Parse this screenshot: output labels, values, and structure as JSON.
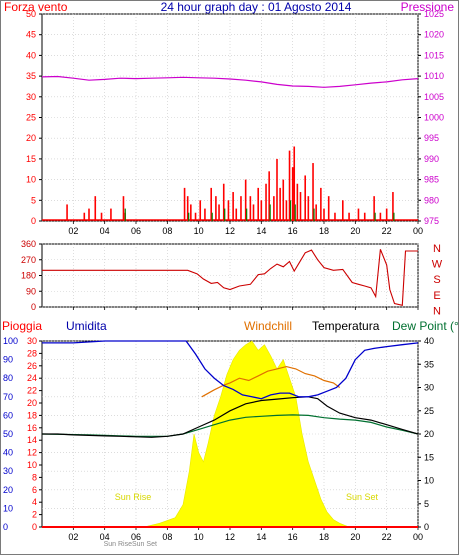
{
  "header": {
    "left_label": "Forza vento",
    "title": "24 hour graph day : 01 Agosto 2014",
    "right_label": "Pressione"
  },
  "top_panel": {
    "left_ticks": [
      "0",
      "5",
      "10",
      "15",
      "20",
      "25",
      "30",
      "35",
      "40",
      "45",
      "50"
    ],
    "right_ticks": [
      "975",
      "980",
      "985",
      "990",
      "995",
      "1000",
      "1005",
      "1010",
      "1015",
      "1020",
      "1025"
    ]
  },
  "dir_panel": {
    "left_ticks": [
      "0",
      "90",
      "180",
      "270",
      "360"
    ],
    "compass": [
      "N",
      "W",
      "S",
      "E",
      "N"
    ]
  },
  "bottom_panel": {
    "labels": {
      "rain": "Pioggia",
      "humidity": "Umidita",
      "windchill": "Windchill",
      "temperature": "Temperatura",
      "dewpoint": "Dew Point (°C"
    },
    "hum_ticks": [
      "0",
      "10",
      "20",
      "30",
      "40",
      "50",
      "60",
      "70",
      "80",
      "90",
      "100"
    ],
    "rain_ticks": [
      "0",
      "2",
      "4",
      "6",
      "8",
      "10",
      "12",
      "14",
      "16",
      "18",
      "20",
      "22",
      "24",
      "26",
      "28",
      "30"
    ],
    "temp_ticks": [
      "0",
      "5",
      "10",
      "15",
      "20",
      "25",
      "30",
      "35",
      "40"
    ],
    "sunrise_label": "Sun Rise",
    "sunset_label": "Sun Set",
    "sunrise_tick_label": "Sun Rise",
    "sunset_tick_label": "Sun Set"
  },
  "x_ticks": [
    "02",
    "04",
    "06",
    "08",
    "10",
    "12",
    "14",
    "16",
    "18",
    "20",
    "22",
    "00"
  ],
  "colors": {
    "wind": "#ff0000",
    "gust": "#008000",
    "pressure": "#cc00cc",
    "direction": "#cc0000",
    "humidity": "#0000cc",
    "temperature": "#000000",
    "windchill": "#e07000",
    "dewpoint": "#007030",
    "solar": "#ffff00",
    "rain": "#ff0000",
    "title": "#0000aa"
  },
  "chart_data": [
    {
      "type": "line",
      "name": "Forza vento / Pressione",
      "x_unit": "hour",
      "xlim": [
        0,
        24
      ],
      "wind_ylim": [
        0,
        50
      ],
      "pressure_ylim": [
        975,
        1025
      ],
      "wind_bars": [
        [
          1.6,
          4
        ],
        [
          2.7,
          2
        ],
        [
          3.0,
          3
        ],
        [
          3.4,
          6
        ],
        [
          3.8,
          2
        ],
        [
          4.4,
          3
        ],
        [
          5.2,
          6
        ],
        [
          5.3,
          2
        ],
        [
          9.1,
          8
        ],
        [
          9.3,
          6
        ],
        [
          9.5,
          4
        ],
        [
          9.8,
          2
        ],
        [
          10.1,
          5
        ],
        [
          10.4,
          3
        ],
        [
          10.8,
          8
        ],
        [
          11.1,
          6
        ],
        [
          11.3,
          4
        ],
        [
          11.6,
          9
        ],
        [
          11.9,
          5
        ],
        [
          12.2,
          7
        ],
        [
          12.4,
          3
        ],
        [
          12.7,
          6
        ],
        [
          13.0,
          10
        ],
        [
          13.3,
          6
        ],
        [
          13.5,
          4
        ],
        [
          13.8,
          8
        ],
        [
          14.0,
          5
        ],
        [
          14.3,
          9
        ],
        [
          14.5,
          12
        ],
        [
          14.8,
          6
        ],
        [
          15.0,
          15
        ],
        [
          15.2,
          8
        ],
        [
          15.4,
          10
        ],
        [
          15.6,
          5
        ],
        [
          15.8,
          17
        ],
        [
          16.0,
          13
        ],
        [
          16.1,
          18
        ],
        [
          16.3,
          9
        ],
        [
          16.5,
          7
        ],
        [
          16.8,
          11
        ],
        [
          17.0,
          6
        ],
        [
          17.3,
          14
        ],
        [
          17.5,
          4
        ],
        [
          17.8,
          8
        ],
        [
          18.0,
          3
        ],
        [
          18.3,
          6
        ],
        [
          18.7,
          2
        ],
        [
          19.2,
          5
        ],
        [
          19.6,
          2
        ],
        [
          20.2,
          3
        ],
        [
          20.6,
          2
        ],
        [
          21.2,
          6
        ],
        [
          21.6,
          2
        ],
        [
          22.0,
          3
        ],
        [
          22.4,
          7
        ]
      ],
      "gust_bars": [
        [
          5.25,
          3
        ],
        [
          9.3,
          2
        ],
        [
          10.8,
          2
        ],
        [
          11.6,
          3
        ],
        [
          13.0,
          3
        ],
        [
          14.5,
          4
        ],
        [
          15.8,
          5
        ],
        [
          16.1,
          4
        ],
        [
          17.3,
          3
        ],
        [
          21.2,
          2
        ],
        [
          22.4,
          2
        ]
      ],
      "pressure": [
        [
          0,
          1009.8
        ],
        [
          1,
          1009.9
        ],
        [
          2,
          1009.5
        ],
        [
          3,
          1009.0
        ],
        [
          4,
          1009.2
        ],
        [
          5,
          1009.5
        ],
        [
          6,
          1009.4
        ],
        [
          7,
          1009.5
        ],
        [
          8,
          1009.6
        ],
        [
          9,
          1009.7
        ],
        [
          10,
          1009.6
        ],
        [
          11,
          1009.5
        ],
        [
          12,
          1009.3
        ],
        [
          13,
          1009.0
        ],
        [
          14,
          1008.6
        ],
        [
          15,
          1008.0
        ],
        [
          16,
          1007.6
        ],
        [
          17,
          1007.5
        ],
        [
          18,
          1007.3
        ],
        [
          19,
          1007.5
        ],
        [
          20,
          1007.9
        ],
        [
          21,
          1008.3
        ],
        [
          22,
          1008.6
        ],
        [
          23,
          1009.1
        ],
        [
          24,
          1009.4
        ]
      ]
    },
    {
      "type": "line",
      "name": "Direzione vento",
      "x_unit": "hour",
      "xlim": [
        0,
        24
      ],
      "ylim": [
        0,
        360
      ],
      "direction": [
        [
          0,
          210
        ],
        [
          9.3,
          210
        ],
        [
          9.9,
          190
        ],
        [
          10.3,
          160
        ],
        [
          10.8,
          135
        ],
        [
          11.2,
          140
        ],
        [
          11.6,
          110
        ],
        [
          12.0,
          100
        ],
        [
          12.6,
          120
        ],
        [
          13.3,
          130
        ],
        [
          13.8,
          185
        ],
        [
          14.2,
          190
        ],
        [
          14.6,
          220
        ],
        [
          15.0,
          245
        ],
        [
          15.4,
          230
        ],
        [
          15.8,
          260
        ],
        [
          16.1,
          205
        ],
        [
          16.4,
          250
        ],
        [
          16.8,
          310
        ],
        [
          17.2,
          325
        ],
        [
          17.6,
          270
        ],
        [
          18.0,
          225
        ],
        [
          18.6,
          210
        ],
        [
          19.2,
          215
        ],
        [
          19.8,
          140
        ],
        [
          20.2,
          130
        ],
        [
          20.6,
          120
        ],
        [
          21.0,
          110
        ],
        [
          21.3,
          60
        ],
        [
          21.6,
          330
        ],
        [
          22.0,
          240
        ],
        [
          22.2,
          100
        ],
        [
          22.5,
          20
        ],
        [
          23.0,
          10
        ],
        [
          23.2,
          320
        ],
        [
          24,
          320
        ]
      ]
    },
    {
      "type": "line",
      "name": "Pioggia / Umidita / Temperatura",
      "x_unit": "hour",
      "xlim": [
        0,
        24
      ],
      "humidity_ylim": [
        0,
        100
      ],
      "rain_ylim": [
        0,
        30
      ],
      "temperature_ylim": [
        0,
        40
      ],
      "humidity": [
        [
          0,
          99
        ],
        [
          2,
          99
        ],
        [
          4,
          100
        ],
        [
          6,
          100
        ],
        [
          8,
          100
        ],
        [
          9.2,
          100
        ],
        [
          9.8,
          93
        ],
        [
          10.4,
          85
        ],
        [
          11.0,
          80
        ],
        [
          11.6,
          76
        ],
        [
          12.2,
          74
        ],
        [
          12.8,
          71
        ],
        [
          13.4,
          70
        ],
        [
          14.0,
          69
        ],
        [
          14.6,
          71
        ],
        [
          15.2,
          72
        ],
        [
          15.8,
          72
        ],
        [
          16.4,
          70
        ],
        [
          17.0,
          70
        ],
        [
          17.6,
          71
        ],
        [
          18.2,
          73
        ],
        [
          18.8,
          75
        ],
        [
          19.4,
          80
        ],
        [
          20.0,
          90
        ],
        [
          20.6,
          95
        ],
        [
          21.2,
          96
        ],
        [
          22.0,
          97
        ],
        [
          23.0,
          98
        ],
        [
          24,
          99
        ]
      ],
      "temperature": [
        [
          0,
          20.0
        ],
        [
          1,
          20.0
        ],
        [
          2,
          19.8
        ],
        [
          3,
          19.7
        ],
        [
          4,
          19.6
        ],
        [
          5,
          19.5
        ],
        [
          6,
          19.4
        ],
        [
          7,
          19.3
        ],
        [
          8,
          19.5
        ],
        [
          9,
          20.0
        ],
        [
          10,
          21.5
        ],
        [
          11,
          23.0
        ],
        [
          12,
          25.0
        ],
        [
          13,
          26.5
        ],
        [
          14,
          27.2
        ],
        [
          15,
          27.5
        ],
        [
          16,
          27.8
        ],
        [
          17,
          28.0
        ],
        [
          17.6,
          27.6
        ],
        [
          18.2,
          26.0
        ],
        [
          19,
          24.5
        ],
        [
          20,
          23.5
        ],
        [
          21,
          23.0
        ],
        [
          22,
          22.0
        ],
        [
          23,
          21.0
        ],
        [
          24,
          20.0
        ]
      ],
      "windchill": [
        [
          10.2,
          28.0
        ],
        [
          11.0,
          29.5
        ],
        [
          11.6,
          30.5
        ],
        [
          12.0,
          31.0
        ],
        [
          12.6,
          32.0
        ],
        [
          13.2,
          31.5
        ],
        [
          13.8,
          32.5
        ],
        [
          14.4,
          33.5
        ],
        [
          15.0,
          34.0
        ],
        [
          15.6,
          34.5
        ],
        [
          16.2,
          34.0
        ],
        [
          16.8,
          33.0
        ],
        [
          17.4,
          32.5
        ],
        [
          18.0,
          31.5
        ],
        [
          18.6,
          31.0
        ],
        [
          19.0,
          30.0
        ]
      ],
      "dewpoint": [
        [
          0,
          20.0
        ],
        [
          3,
          19.8
        ],
        [
          6,
          19.5
        ],
        [
          8,
          19.5
        ],
        [
          9,
          20.0
        ],
        [
          10,
          21.0
        ],
        [
          11,
          22.0
        ],
        [
          12,
          23.0
        ],
        [
          13,
          23.6
        ],
        [
          14,
          23.8
        ],
        [
          15,
          24.0
        ],
        [
          16,
          24.1
        ],
        [
          17,
          24.0
        ],
        [
          18,
          23.5
        ],
        [
          19,
          23.2
        ],
        [
          20,
          23.0
        ],
        [
          21,
          22.5
        ],
        [
          22,
          21.5
        ],
        [
          23,
          20.8
        ],
        [
          24,
          20.0
        ]
      ],
      "solar_percent": [
        [
          6.5,
          0
        ],
        [
          7.5,
          2
        ],
        [
          8.5,
          5
        ],
        [
          9.0,
          12
        ],
        [
          9.4,
          30
        ],
        [
          9.7,
          50
        ],
        [
          10.0,
          40
        ],
        [
          10.3,
          35
        ],
        [
          10.6,
          45
        ],
        [
          11.0,
          60
        ],
        [
          11.4,
          70
        ],
        [
          11.8,
          82
        ],
        [
          12.2,
          90
        ],
        [
          12.6,
          95
        ],
        [
          13.0,
          98
        ],
        [
          13.4,
          100
        ],
        [
          13.8,
          95
        ],
        [
          14.2,
          98
        ],
        [
          14.6,
          92
        ],
        [
          15.0,
          85
        ],
        [
          15.4,
          90
        ],
        [
          15.8,
          80
        ],
        [
          16.2,
          70
        ],
        [
          16.6,
          50
        ],
        [
          17.0,
          35
        ],
        [
          17.4,
          25
        ],
        [
          17.8,
          15
        ],
        [
          18.2,
          8
        ],
        [
          18.6,
          4
        ],
        [
          19.0,
          2
        ],
        [
          19.6,
          0
        ]
      ],
      "rain": [
        [
          0,
          0
        ],
        [
          24,
          0
        ]
      ]
    }
  ]
}
